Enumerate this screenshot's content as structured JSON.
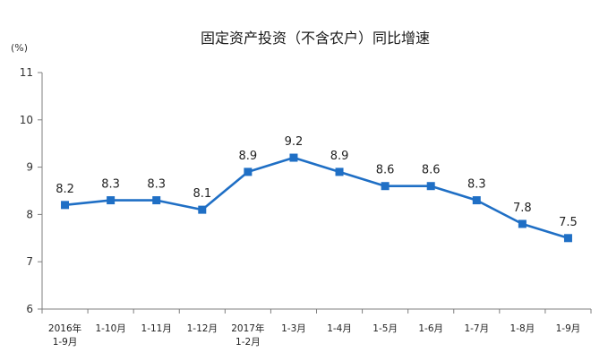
{
  "chart_data": {
    "type": "line",
    "title": "固定资产投资（不含农户）同比增速",
    "ylabel": "(%)",
    "xlabel": "",
    "ylim": [
      6,
      11
    ],
    "yticks": [
      "6",
      "7",
      "8",
      "9",
      "10",
      "11"
    ],
    "grid": false,
    "legend": "none",
    "categories": [
      [
        "2016年",
        "1-9月"
      ],
      [
        "1-10月"
      ],
      [
        "1-11月"
      ],
      [
        "1-12月"
      ],
      [
        "2017年",
        "1-2月"
      ],
      [
        "1-3月"
      ],
      [
        "1-4月"
      ],
      [
        "1-5月"
      ],
      [
        "1-6月"
      ],
      [
        "1-7月"
      ],
      [
        "1-8月"
      ],
      [
        "1-9月"
      ]
    ],
    "series": [
      {
        "values": [
          8.2,
          8.3,
          8.3,
          8.1,
          8.9,
          9.2,
          8.9,
          8.6,
          8.6,
          8.3,
          7.8,
          7.5
        ],
        "labels": [
          "8.2",
          "8.3",
          "8.3",
          "8.1",
          "8.9",
          "9.2",
          "8.9",
          "8.6",
          "8.6",
          "8.3",
          "7.8",
          "7.5"
        ],
        "color": "#1f6fc5"
      }
    ],
    "axis_color": "#7f7f7f"
  }
}
